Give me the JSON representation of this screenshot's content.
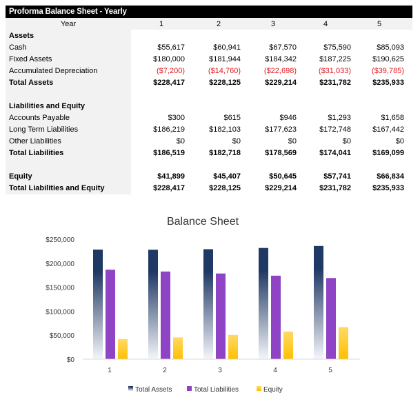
{
  "sheet": {
    "title": "Proforma Balance Sheet - Yearly",
    "year_label": "Year",
    "years": [
      "1",
      "2",
      "3",
      "4",
      "5"
    ],
    "rows": [
      {
        "label": "Assets",
        "bold": true,
        "values": []
      },
      {
        "label": "Cash",
        "values": [
          "$55,617",
          "$60,941",
          "$67,570",
          "$75,590",
          "$85,093"
        ]
      },
      {
        "label": "Fixed Assets",
        "values": [
          "$180,000",
          "$181,944",
          "$184,342",
          "$187,225",
          "$190,625"
        ]
      },
      {
        "label": "Accumulated Depreciation",
        "negative": true,
        "values": [
          "($7,200)",
          "($14,760)",
          "($22,698)",
          "($31,033)",
          "($39,785)"
        ]
      },
      {
        "label": "Total Assets",
        "bold": true,
        "values": [
          "$228,417",
          "$228,125",
          "$229,214",
          "$231,782",
          "$235,933"
        ]
      },
      {
        "label": "",
        "values": []
      },
      {
        "label": "Liabilities and Equity",
        "bold": true,
        "values": []
      },
      {
        "label": "Accounts Payable",
        "values": [
          "$300",
          "$615",
          "$946",
          "$1,293",
          "$1,658"
        ]
      },
      {
        "label": "Long Term Liabilities",
        "values": [
          "$186,219",
          "$182,103",
          "$177,623",
          "$172,748",
          "$167,442"
        ]
      },
      {
        "label": "Other Liabilities",
        "values": [
          "$0",
          "$0",
          "$0",
          "$0",
          "$0"
        ]
      },
      {
        "label": "Total Liabilities",
        "bold": true,
        "values": [
          "$186,519",
          "$182,718",
          "$178,569",
          "$174,041",
          "$169,099"
        ]
      },
      {
        "label": "",
        "values": []
      },
      {
        "label": "Equity",
        "bold": true,
        "values": [
          "$41,899",
          "$45,407",
          "$50,645",
          "$57,741",
          "$66,834"
        ]
      },
      {
        "label": "Total Liabilities and Equity",
        "bold": true,
        "values": [
          "$228,417",
          "$228,125",
          "$229,214",
          "$231,782",
          "$235,933"
        ]
      }
    ]
  },
  "chart_data": {
    "type": "bar",
    "title": "Balance Sheet",
    "categories": [
      "1",
      "2",
      "3",
      "4",
      "5"
    ],
    "ylim": [
      0,
      250000
    ],
    "yticks": [
      "$0",
      "$50,000",
      "$100,000",
      "$150,000",
      "$200,000",
      "$250,000"
    ],
    "ytick_values": [
      0,
      50000,
      100000,
      150000,
      200000,
      250000
    ],
    "grid": false,
    "legend": "bottom",
    "series": [
      {
        "name": "Total Assets",
        "color": "#1f3864",
        "values": [
          228417,
          228125,
          229214,
          231782,
          235933
        ]
      },
      {
        "name": "Total Liabilities",
        "color": "#8e44c4",
        "values": [
          186519,
          182718,
          178569,
          174041,
          169099
        ]
      },
      {
        "name": "Equity",
        "color": "#ffc000",
        "values": [
          41899,
          45407,
          50645,
          57741,
          66834
        ]
      }
    ]
  }
}
